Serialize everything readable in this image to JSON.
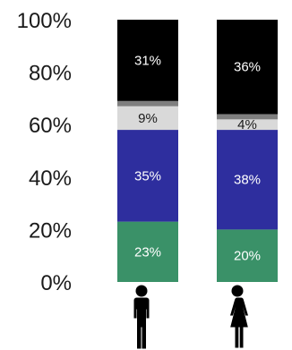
{
  "chart_data": {
    "type": "bar",
    "stacked": true,
    "normalized": true,
    "categories": [
      "male",
      "female"
    ],
    "category_icons": [
      "male-person-icon",
      "female-person-icon"
    ],
    "ylim": [
      0,
      100
    ],
    "yticks": [
      0,
      20,
      40,
      60,
      80,
      100
    ],
    "ytick_labels": [
      "0%",
      "20%",
      "40%",
      "60%",
      "80%",
      "100%"
    ],
    "grid": false,
    "legend": "none",
    "series": [
      {
        "color": "#3a9168",
        "text_color": "#ffffff",
        "values": [
          23,
          20
        ],
        "labels": [
          "23%",
          "20%"
        ]
      },
      {
        "color": "#2e2e9e",
        "text_color": "#ffffff",
        "values": [
          35,
          38
        ],
        "labels": [
          "35%",
          "38%"
        ]
      },
      {
        "color": "#d9d9d9",
        "text_color": "#1a1a1a",
        "values": [
          9,
          4
        ],
        "labels": [
          "9%",
          "4%"
        ]
      },
      {
        "color": "#7f7f7f",
        "text_color": "#ffffff",
        "values": [
          2,
          2
        ],
        "labels": [
          "",
          ""
        ]
      },
      {
        "color": "#000000",
        "text_color": "#ffffff",
        "values": [
          31,
          36
        ],
        "labels": [
          "31%",
          "36%"
        ]
      }
    ]
  }
}
